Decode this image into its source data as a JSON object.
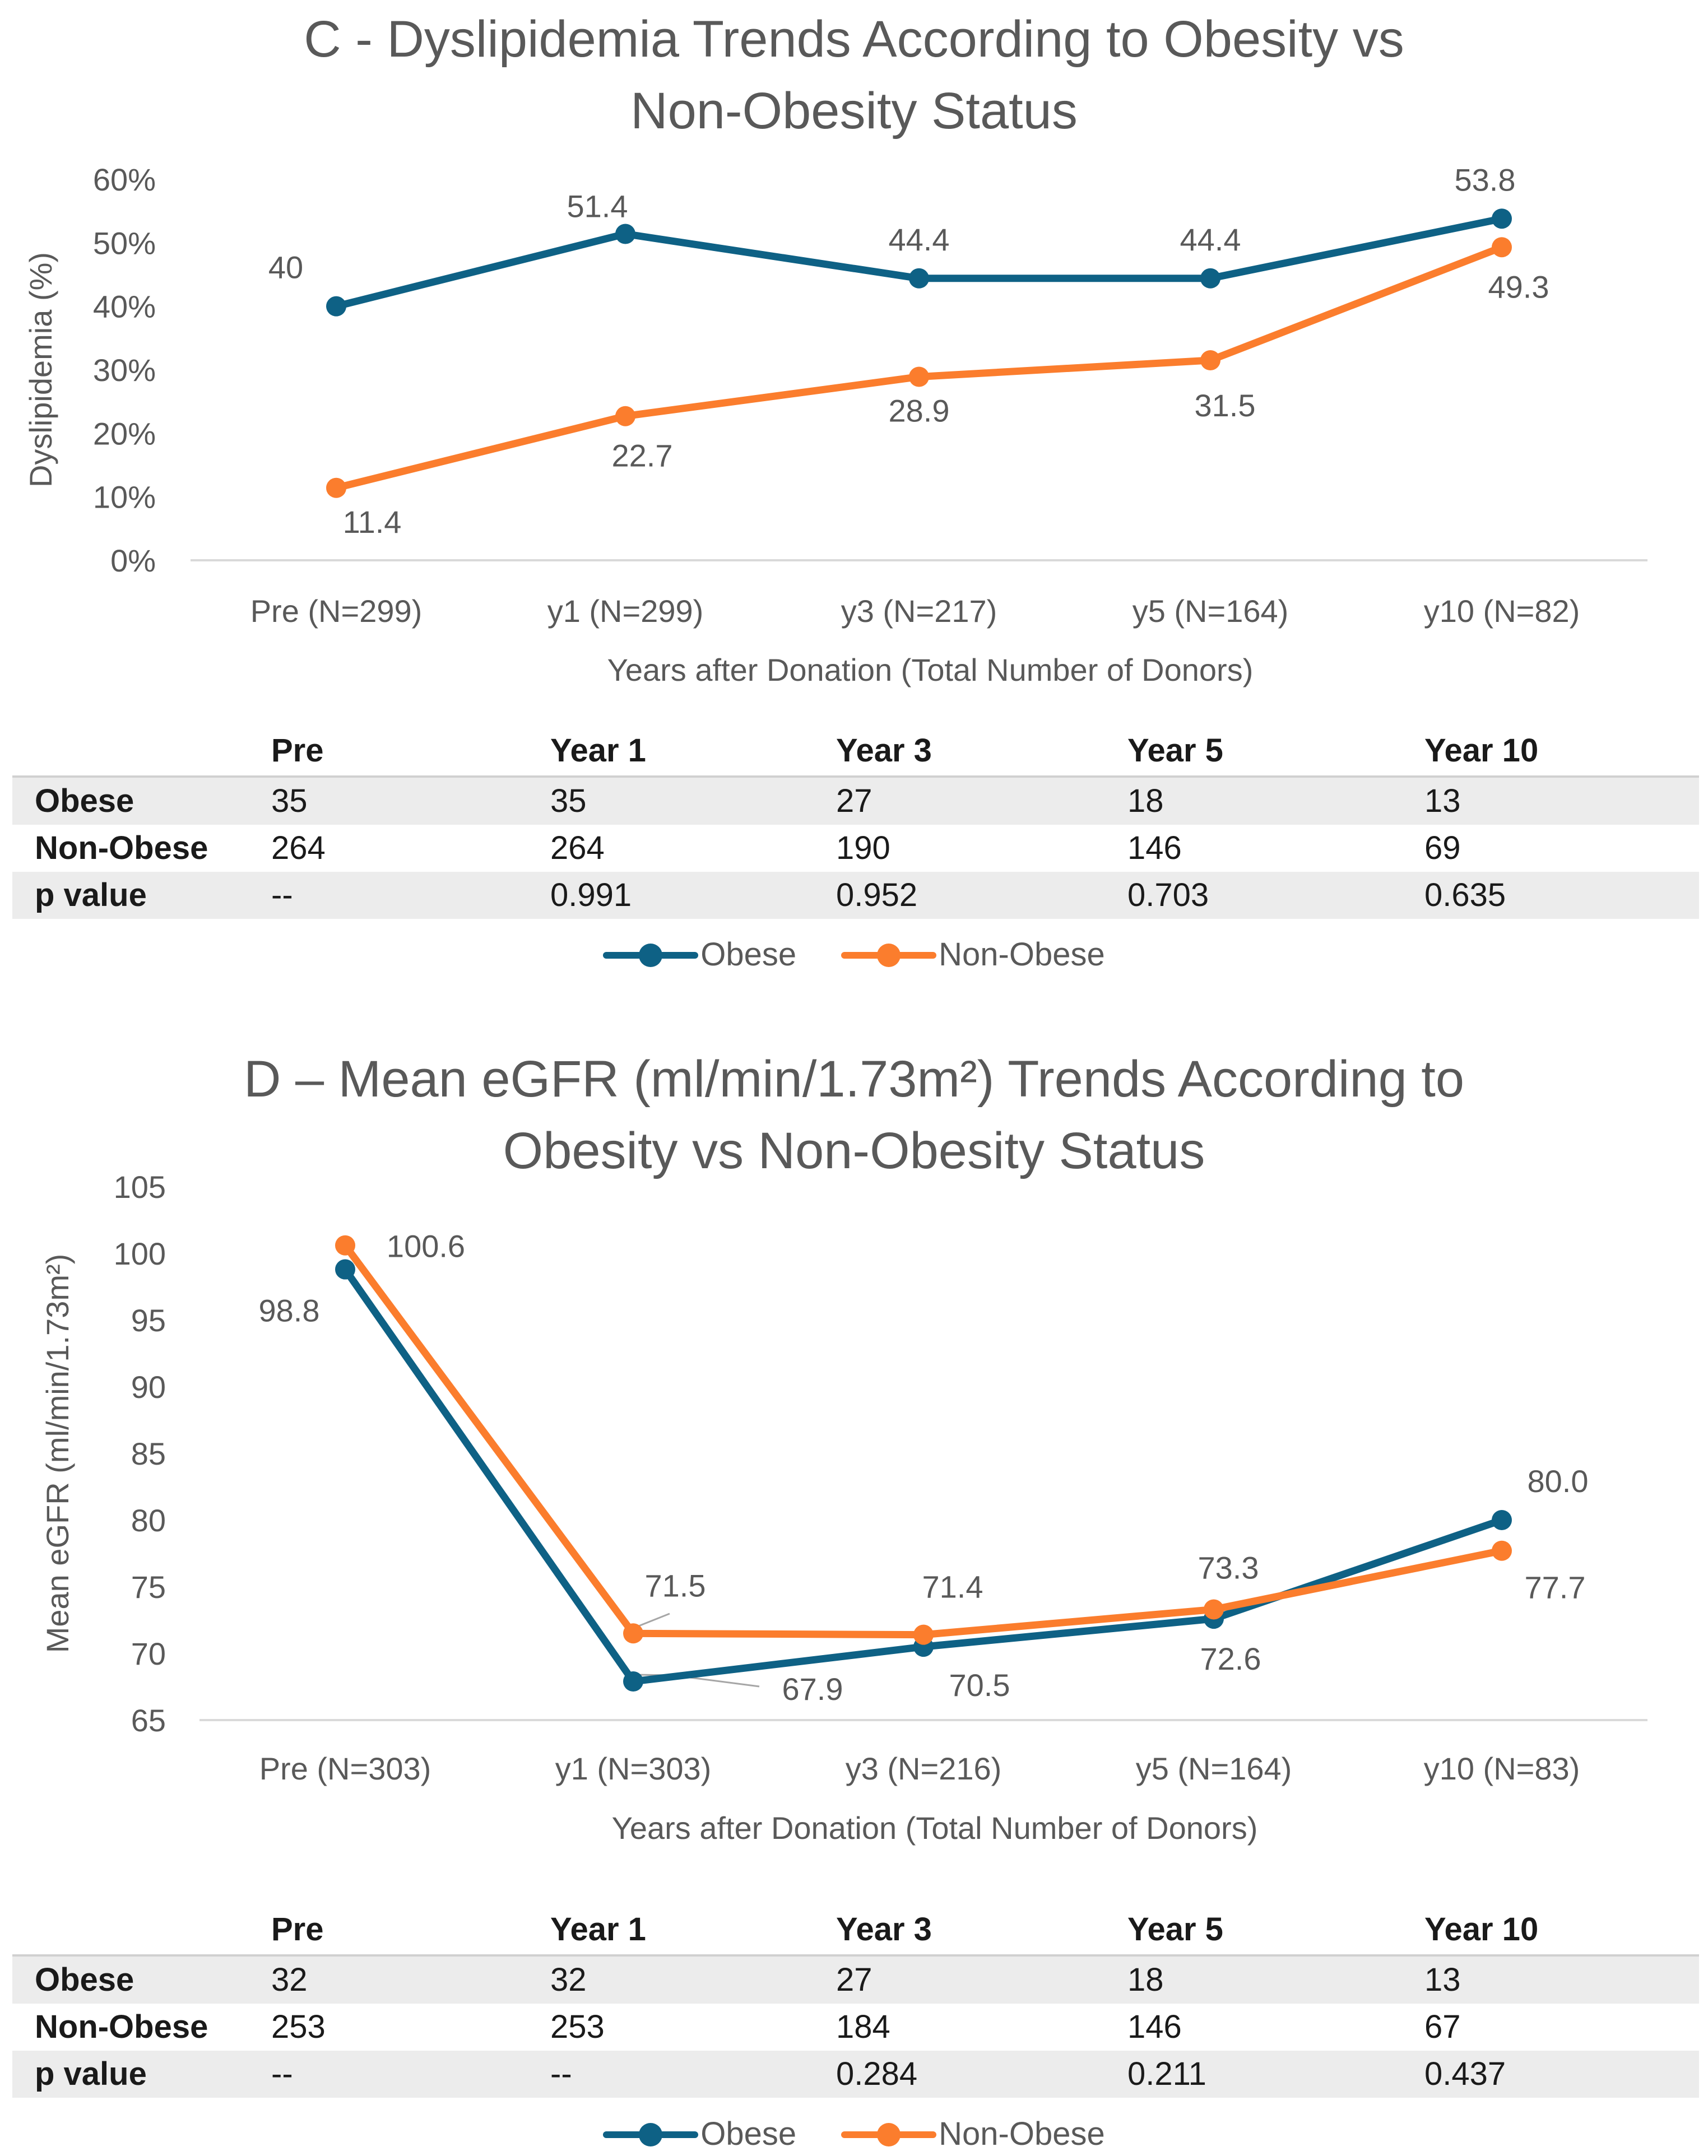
{
  "colors": {
    "obese": "#0e6185",
    "non_obese": "#fb7d2d",
    "text": "#595959",
    "grid": "#d9d9d9"
  },
  "charts": [
    {
      "title_lines": [
        "C - Dyslipidemia Trends According to Obesity vs",
        "Non-Obesity Status"
      ],
      "y_ticks": [
        "60%",
        "50%",
        "40%",
        "30%",
        "20%",
        "10%",
        "0%"
      ],
      "table": {
        "headers": [
          "Pre",
          "Year 1",
          "Year 3",
          "Year 5",
          "Year 10"
        ],
        "rows": [
          {
            "label": "Obese",
            "values": [
              "35",
              "35",
              "27",
              "18",
              "13"
            ]
          },
          {
            "label": "Non-Obese",
            "values": [
              "264",
              "264",
              "190",
              "146",
              "69"
            ]
          },
          {
            "label": "p value",
            "values": [
              "--",
              "0.991",
              "0.952",
              "0.703",
              "0.635"
            ]
          }
        ]
      },
      "legend": [
        "Obese",
        "Non-Obese"
      ]
    },
    {
      "title_lines": [
        "D – Mean eGFR (ml/min/1.73m²)  Trends According to",
        "Obesity vs Non-Obesity Status"
      ],
      "y_ticks": [
        "105",
        "100",
        "95",
        "90",
        "85",
        "80",
        "75",
        "70",
        "65"
      ],
      "table": {
        "headers": [
          "Pre",
          "Year 1",
          "Year 3",
          "Year 5",
          "Year 10"
        ],
        "rows": [
          {
            "label": "Obese",
            "values": [
              "32",
              "32",
              "27",
              "18",
              "13"
            ]
          },
          {
            "label": "Non-Obese",
            "values": [
              "253",
              "253",
              "184",
              "146",
              "67"
            ]
          },
          {
            "label": "p value",
            "values": [
              "--",
              "--",
              "0.284",
              "0.211",
              "0.437"
            ]
          }
        ]
      },
      "legend": [
        "Obese",
        "Non-Obese"
      ]
    }
  ],
  "chart_data": [
    {
      "type": "line",
      "title": "C - Dyslipidemia Trends According to Obesity vs Non-Obesity Status",
      "categories": [
        "Pre (N=299)",
        "y1 (N=299)",
        "y3 (N=217)",
        "y5 (N=164)",
        "y10 (N=82)"
      ],
      "series": [
        {
          "name": "Obese",
          "values": [
            40,
            51.4,
            44.4,
            44.4,
            53.8
          ],
          "labels": [
            "40",
            "51.4",
            "44.4",
            "44.4",
            "53.8"
          ]
        },
        {
          "name": "Non-Obese",
          "values": [
            11.4,
            22.7,
            28.9,
            31.5,
            49.3
          ],
          "labels": [
            "11.4",
            "22.7",
            "28.9",
            "31.5",
            "49.3"
          ]
        }
      ],
      "xlabel": "Years after Donation (Total Number of Donors)",
      "ylabel": "Dyslipidemia (%)",
      "ylim": [
        0,
        60
      ],
      "legend": "bottom"
    },
    {
      "type": "line",
      "title": "D – Mean eGFR (ml/min/1.73m²)  Trends According to Obesity vs Non-Obesity Status",
      "categories": [
        "Pre (N=303)",
        "y1 (N=303)",
        "y3 (N=216)",
        "y5 (N=164)",
        "y10 (N=83)"
      ],
      "series": [
        {
          "name": "Obese",
          "values": [
            98.8,
            67.9,
            70.5,
            72.6,
            80.0
          ],
          "labels": [
            "98.8",
            "67.9",
            "70.5",
            "72.6",
            "80.0"
          ]
        },
        {
          "name": "Non-Obese",
          "values": [
            100.6,
            71.5,
            71.4,
            73.3,
            77.7
          ],
          "labels": [
            "100.6",
            "71.5",
            "71.4",
            "73.3",
            "77.7"
          ]
        }
      ],
      "xlabel": "Years after Donation (Total Number of Donors)",
      "ylabel": "Mean eGFR (ml/min/1.73m²)",
      "ylim": [
        65,
        105
      ],
      "legend": "bottom"
    }
  ]
}
